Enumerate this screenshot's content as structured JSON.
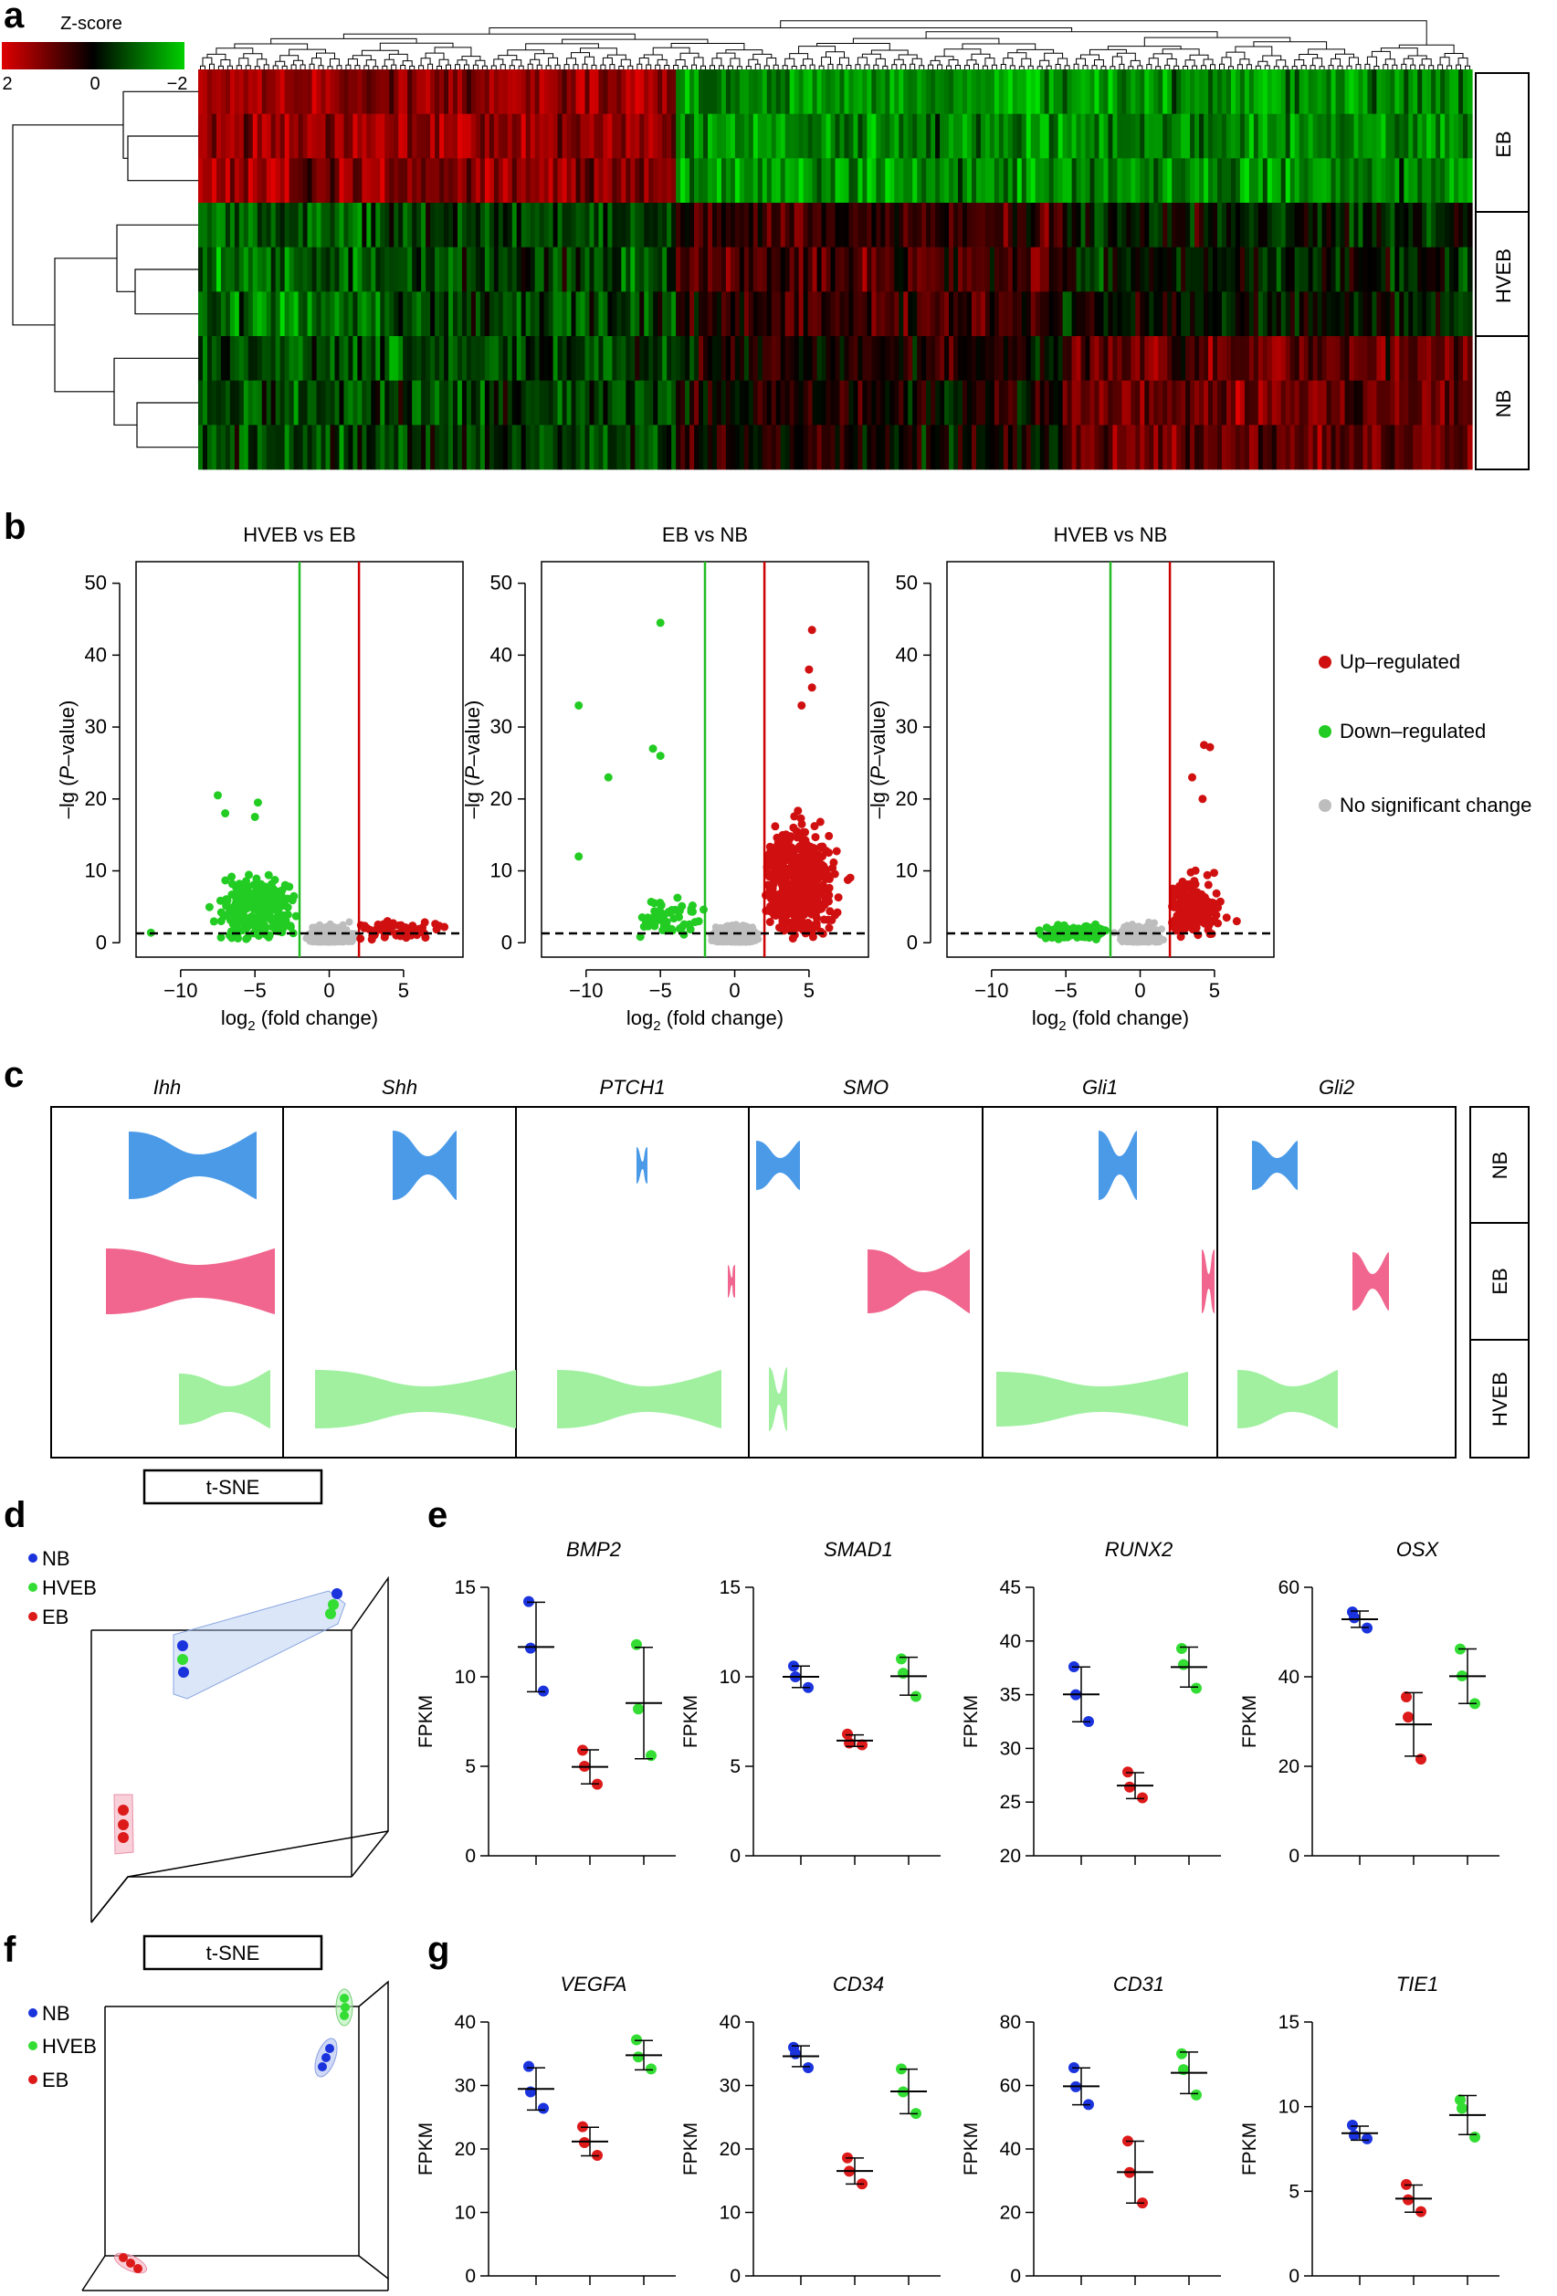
{
  "panels": {
    "a": "a",
    "b": "b",
    "c": "c",
    "d": "d",
    "e": "e",
    "f": "f",
    "g": "g"
  },
  "heatmap": {
    "legend_title": "Z-score",
    "legend_ticks": [
      "2",
      "0",
      "−2"
    ],
    "row_groups": [
      "EB",
      "HVEB",
      "NB"
    ],
    "colors": {
      "high": "#e00000",
      "mid": "#000000",
      "low": "#00e000"
    }
  },
  "volcano": {
    "colors": {
      "up": "#d01010",
      "down": "#22cc22",
      "ns": "#bdbdbd",
      "vline_up": "#cc0000",
      "vline_down": "#22bb22"
    },
    "legend": [
      "Up–regulated",
      "Down–regulated",
      "No significant change"
    ],
    "xlabel_prefix": "log",
    "xlabel_sub": "2",
    "xlabel_suffix": " (fold change)",
    "ylabel_prefix": "–lg (",
    "ylabel_italic": "P",
    "ylabel_suffix": "–value)",
    "xticks": [
      "−10",
      "−5",
      "0",
      "5"
    ],
    "yticks": [
      "0",
      "10",
      "20",
      "30",
      "40",
      "50"
    ],
    "plots": [
      "HVEB vs EB",
      "EB vs NB",
      "HVEB vs NB"
    ]
  },
  "violin": {
    "genes": [
      "Ihh",
      "Shh",
      "PTCH1",
      "SMO",
      "Gli1",
      "Gli2"
    ],
    "groups": [
      "NB",
      "EB",
      "HVEB"
    ],
    "colors": {
      "NB": "#4a9ae8",
      "EB": "#f0668e",
      "HVEB": "#a0f0a0"
    }
  },
  "tsne": {
    "title": "t-SNE",
    "legend": [
      "NB",
      "HVEB",
      "EB"
    ],
    "colors": {
      "NB": "#1a33dd",
      "HVEB": "#33dd33",
      "EB": "#dd1a1a"
    }
  },
  "dot_ylabel": "FPKM",
  "chart_data": [
    {
      "type": "scatter",
      "title": "BMP2",
      "ylabel": "FPKM",
      "ylim": [
        0,
        15
      ],
      "yticks": [
        "0",
        "5",
        "10",
        "15"
      ],
      "series": [
        {
          "name": "NB",
          "values": [
            14.2,
            11.6,
            9.2
          ]
        },
        {
          "name": "EB",
          "values": [
            5.9,
            5.0,
            4.0
          ]
        },
        {
          "name": "HVEB",
          "values": [
            11.8,
            8.2,
            5.6
          ]
        }
      ]
    },
    {
      "type": "scatter",
      "title": "SMAD1",
      "ylabel": "FPKM",
      "ylim": [
        0,
        15
      ],
      "yticks": [
        "0",
        "5",
        "10",
        "15"
      ],
      "series": [
        {
          "name": "NB",
          "values": [
            10.6,
            10.0,
            9.4
          ]
        },
        {
          "name": "EB",
          "values": [
            6.8,
            6.3,
            6.2
          ]
        },
        {
          "name": "HVEB",
          "values": [
            11.0,
            10.2,
            8.9
          ]
        }
      ]
    },
    {
      "type": "scatter",
      "title": "RUNX2",
      "ylabel": "FPKM",
      "ylim": [
        20,
        45
      ],
      "yticks": [
        "20",
        "25",
        "30",
        "35",
        "40",
        "45"
      ],
      "series": [
        {
          "name": "NB",
          "values": [
            37.6,
            35.0,
            32.5
          ]
        },
        {
          "name": "EB",
          "values": [
            27.8,
            26.4,
            25.4
          ]
        },
        {
          "name": "HVEB",
          "values": [
            39.3,
            37.8,
            35.6
          ]
        }
      ]
    },
    {
      "type": "scatter",
      "title": "OSX",
      "ylabel": "FPKM",
      "ylim": [
        0,
        60
      ],
      "yticks": [
        "0",
        "20",
        "40",
        "60"
      ],
      "series": [
        {
          "name": "NB",
          "values": [
            54.5,
            53.2,
            50.9
          ]
        },
        {
          "name": "EB",
          "values": [
            35.5,
            31.0,
            21.6
          ]
        },
        {
          "name": "HVEB",
          "values": [
            46.2,
            40.2,
            34.0
          ]
        }
      ]
    },
    {
      "type": "scatter",
      "title": "VEGFA",
      "ylabel": "FPKM",
      "ylim": [
        0,
        40
      ],
      "yticks": [
        "0",
        "10",
        "20",
        "30",
        "40"
      ],
      "series": [
        {
          "name": "NB",
          "values": [
            33.0,
            29.0,
            26.4
          ]
        },
        {
          "name": "EB",
          "values": [
            23.5,
            21.0,
            19.0
          ]
        },
        {
          "name": "HVEB",
          "values": [
            37.2,
            34.5,
            32.6
          ]
        }
      ]
    },
    {
      "type": "scatter",
      "title": "CD34",
      "ylabel": "FPKM",
      "ylim": [
        0,
        40
      ],
      "yticks": [
        "0",
        "10",
        "20",
        "30",
        "40"
      ],
      "series": [
        {
          "name": "NB",
          "values": [
            36.0,
            35.0,
            32.8
          ]
        },
        {
          "name": "EB",
          "values": [
            18.6,
            16.5,
            14.5
          ]
        },
        {
          "name": "HVEB",
          "values": [
            32.6,
            29.0,
            25.6
          ]
        }
      ]
    },
    {
      "type": "scatter",
      "title": "CD31",
      "ylabel": "FPKM",
      "ylim": [
        0,
        80
      ],
      "yticks": [
        "0",
        "20",
        "40",
        "60",
        "80"
      ],
      "series": [
        {
          "name": "NB",
          "values": [
            65.6,
            59.6,
            54.0
          ]
        },
        {
          "name": "EB",
          "values": [
            42.5,
            32.6,
            23.0
          ]
        },
        {
          "name": "HVEB",
          "values": [
            70.0,
            65.0,
            57.0
          ]
        }
      ]
    },
    {
      "type": "scatter",
      "title": "TIE1",
      "ylabel": "FPKM",
      "ylim": [
        0,
        15
      ],
      "yticks": [
        "0",
        "5",
        "10",
        "15"
      ],
      "series": [
        {
          "name": "NB",
          "values": [
            8.9,
            8.3,
            8.1
          ]
        },
        {
          "name": "EB",
          "values": [
            5.4,
            4.5,
            3.8
          ]
        },
        {
          "name": "HVEB",
          "values": [
            10.4,
            9.9,
            8.2
          ]
        }
      ]
    }
  ]
}
